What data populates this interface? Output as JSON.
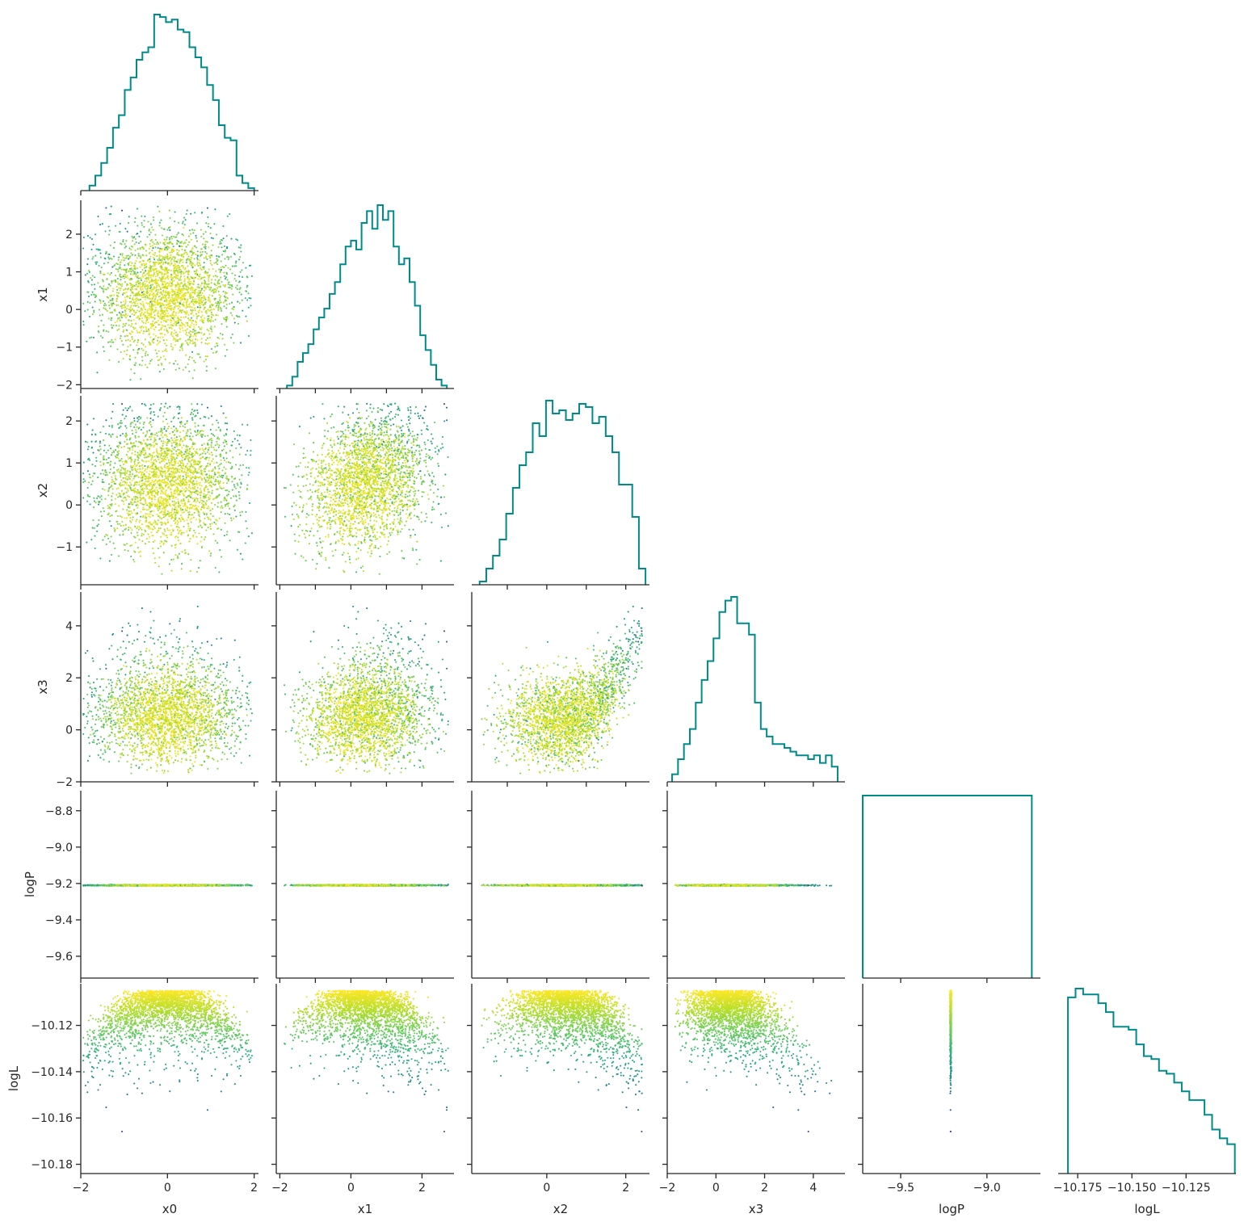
{
  "chart_data": {
    "type": "scatter",
    "kind": "corner-plot",
    "variables": [
      "x0",
      "x1",
      "x2",
      "x3",
      "logP",
      "logL"
    ],
    "diagonal": "step-histogram",
    "lower_triangle": "scatter",
    "hist_color": "#008b8b",
    "colormap": "viridis",
    "color_by": "logL",
    "grid": false,
    "n_points_per_panel": 2600,
    "ranges": {
      "x0": [
        -2.0,
        2.1
      ],
      "x1": [
        -2.1,
        2.9
      ],
      "x2": [
        -1.9,
        2.6
      ],
      "x3": [
        -2.0,
        5.3
      ],
      "logP": [
        -9.72,
        -8.69
      ],
      "logL": [
        -10.184,
        -10.102
      ]
    },
    "ticks": {
      "x0": {
        "values": [
          -2,
          0,
          2
        ],
        "labels": [
          "−2",
          "0",
          "2"
        ]
      },
      "x1": {
        "values": [
          -2,
          -1,
          0,
          1,
          2
        ],
        "labels": [
          "−2",
          "−1",
          "0",
          "1",
          "2"
        ]
      },
      "x1_bottom": {
        "values": [
          -2,
          0,
          2
        ],
        "labels": [
          "−2",
          "0",
          "2"
        ]
      },
      "x2": {
        "values": [
          -1,
          0,
          1,
          2
        ],
        "labels": [
          "−1",
          "0",
          "1",
          "2"
        ]
      },
      "x2_bottom": {
        "values": [
          0,
          2
        ],
        "labels": [
          "0",
          "2"
        ]
      },
      "x3": {
        "values": [
          -2,
          0,
          2,
          4
        ],
        "labels": [
          "−2",
          "0",
          "2",
          "4"
        ]
      },
      "logP": {
        "values": [
          -8.8,
          -9.0,
          -9.2,
          -9.4,
          -9.6
        ],
        "labels": [
          "−8.8",
          "−9.0",
          "−9.2",
          "−9.4",
          "−9.6"
        ]
      },
      "logP_bottom": {
        "values": [
          -9.5,
          -9.0
        ],
        "labels": [
          "−9.5",
          "−9.0"
        ]
      },
      "logL": {
        "values": [
          -10.12,
          -10.14,
          -10.16,
          -10.18
        ],
        "labels": [
          "−10.12",
          "−10.14",
          "−10.16",
          "−10.18"
        ]
      },
      "logL_bottom": {
        "values": [
          -10.175,
          -10.15,
          -10.125
        ],
        "labels": [
          "−10.175",
          "−10.150",
          "−10.125"
        ]
      }
    },
    "histograms": {
      "x0": {
        "range": [
          -1.8,
          2.0
        ],
        "counts": [
          2,
          6,
          11,
          17,
          25,
          30,
          40,
          45,
          52,
          55,
          57,
          70,
          69,
          67,
          68,
          64,
          63,
          57,
          53,
          49,
          42,
          36,
          26,
          21,
          20,
          6,
          3,
          1
        ]
      },
      "x1": {
        "range": [
          -1.8,
          2.7
        ],
        "counts": [
          1,
          4,
          9,
          12,
          15,
          20,
          24,
          27,
          32,
          36,
          42,
          48,
          50,
          47,
          56,
          60,
          54,
          62,
          57,
          60,
          48,
          42,
          44,
          36,
          28,
          18,
          13,
          8,
          3,
          1
        ]
      },
      "x2": {
        "range": [
          -1.7,
          2.5
        ],
        "counts": [
          1,
          5,
          9,
          14,
          22,
          30,
          37,
          41,
          50,
          46,
          57,
          53,
          54,
          51,
          53,
          56,
          55,
          50,
          52,
          46,
          41,
          31,
          31,
          21,
          5
        ]
      },
      "x3": {
        "range": [
          -1.8,
          5.0
        ],
        "counts": [
          2,
          6,
          10,
          14,
          21,
          27,
          32,
          38,
          45,
          48,
          49,
          42,
          42,
          39,
          21,
          14,
          12,
          10,
          10,
          9,
          8,
          7,
          7,
          6,
          7,
          5,
          7,
          4
        ]
      },
      "logP": {
        "range": [
          -9.72,
          -8.74
        ],
        "counts": [
          1
        ]
      },
      "logL": {
        "range": [
          -10.1795,
          -10.1025
        ],
        "counts": [
          60,
          63,
          61,
          61,
          58,
          55,
          50,
          50,
          49,
          44,
          40,
          39,
          35,
          34,
          31,
          28,
          25,
          25,
          20,
          15,
          12,
          10
        ]
      }
    },
    "logP_value": -9.21,
    "xlabels": [
      "x0",
      "x1",
      "x2",
      "x3",
      "logP",
      "logL"
    ],
    "ylabels": [
      "",
      "x1",
      "x2",
      "x3",
      "logP",
      "logL"
    ]
  }
}
